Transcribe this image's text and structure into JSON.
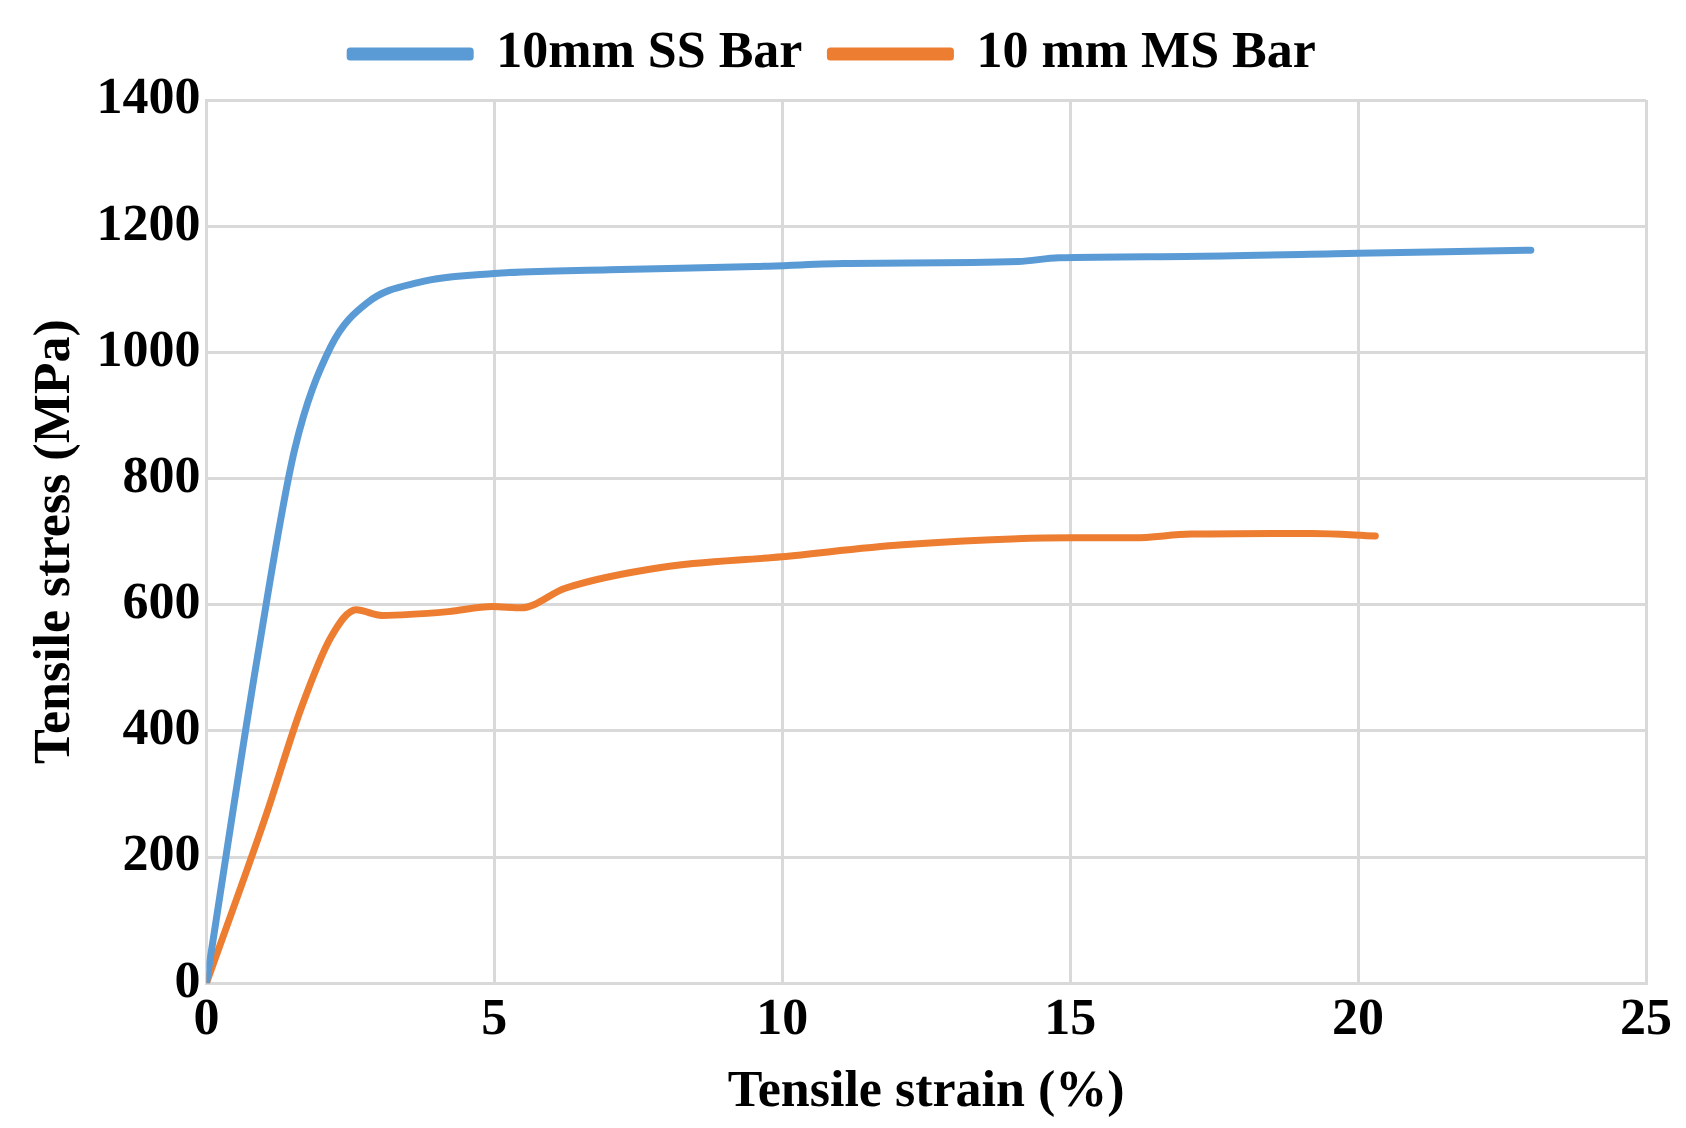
{
  "chart_data": {
    "type": "line",
    "xlabel": "Tensile strain (%)",
    "ylabel": "Tensile stress (MPa)",
    "xlim": [
      0,
      25
    ],
    "xticks": [
      0,
      5,
      10,
      15,
      20,
      25
    ],
    "ylim": [
      0,
      1400
    ],
    "yticks": [
      0,
      200,
      400,
      600,
      800,
      1000,
      1200,
      1400
    ],
    "grid": true,
    "legend": "top",
    "marker": "none",
    "line_style": "solid",
    "series": [
      {
        "name": "10mm SS Bar",
        "color": "#5b9bd5",
        "x": [
          0,
          0.89,
          1.53,
          2.16,
          2.8,
          3.69,
          5,
          7,
          9.54,
          11.07,
          14.1,
          14.8,
          17,
          20,
          23
        ],
        "values": [
          0,
          519,
          845,
          1009,
          1079,
          1111,
          1125,
          1131,
          1136,
          1141,
          1144,
          1150,
          1152,
          1157,
          1162
        ]
      },
      {
        "name": "10 mm MS Bar",
        "color": "#ed7d31",
        "x": [
          0,
          1.02,
          1.65,
          2.16,
          2.6,
          3.05,
          4.2,
          4.96,
          5.47,
          6.23,
          7.89,
          9.99,
          12.09,
          15,
          16.1,
          17.1,
          19.2,
          20.3
        ],
        "values": [
          0,
          262,
          437,
          548,
          592,
          583,
          589,
          597,
          595,
          626,
          659,
          676,
          695,
          706,
          706,
          712,
          713,
          709
        ]
      }
    ]
  }
}
